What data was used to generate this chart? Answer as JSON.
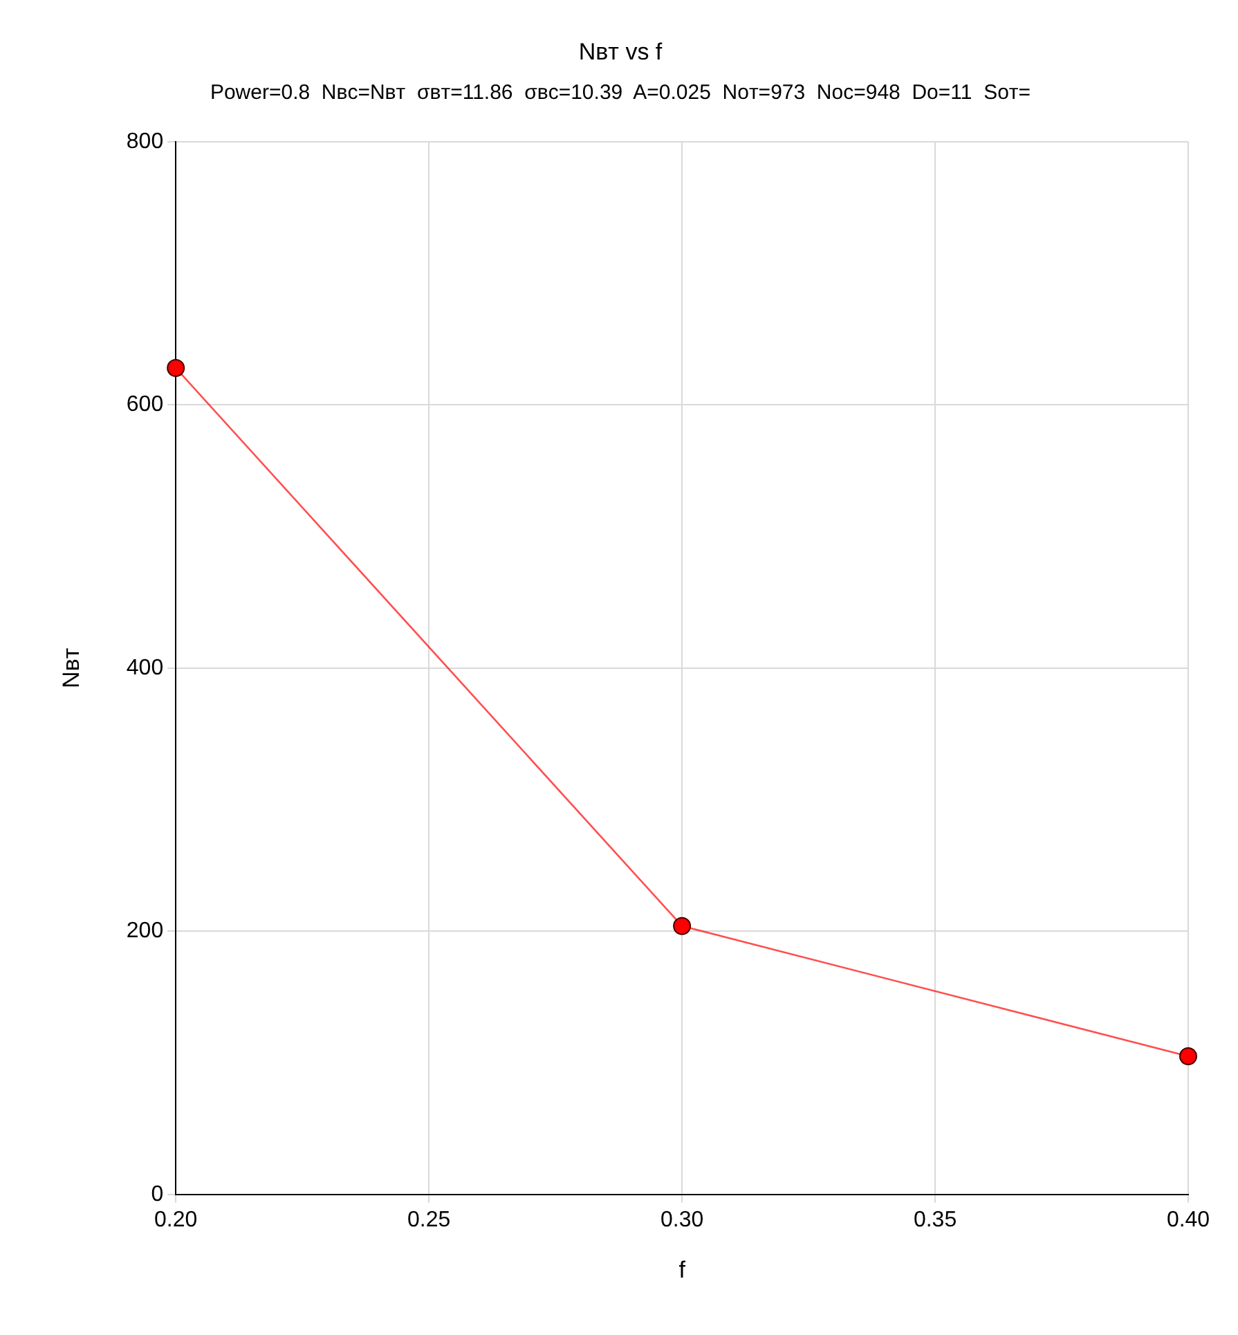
{
  "chart_data": {
    "type": "line",
    "title": "Nʙᴛ vs f",
    "subtitle": "Power=0.8  Nʙᴄ=Nʙᴛ  σʙᴛ=11.86  σʙᴄ=10.39  A=0.025  Nᴏᴛ=973  Nᴏᴄ=948  Dᴏ=11  Sᴏᴛ=",
    "xlabel": "f",
    "ylabel": "Nʙᴛ",
    "x": [
      0.2,
      0.3,
      0.4
    ],
    "series": [
      {
        "color": "#ff0000",
        "values": [
          628,
          204,
          105
        ]
      }
    ],
    "xlim": [
      0.2,
      0.4
    ],
    "xticks": [
      {
        "value": 0.2,
        "label": "0.20"
      },
      {
        "value": 0.25,
        "label": "0.25"
      },
      {
        "value": 0.3,
        "label": "0.30"
      },
      {
        "value": 0.35,
        "label": "0.35"
      },
      {
        "value": 0.4,
        "label": "0.40"
      }
    ],
    "ylim": [
      0,
      800
    ],
    "yticks": [
      0,
      200,
      400,
      600,
      800
    ],
    "grid": true,
    "legend": false,
    "marker": "circle",
    "line_style": "solid"
  }
}
